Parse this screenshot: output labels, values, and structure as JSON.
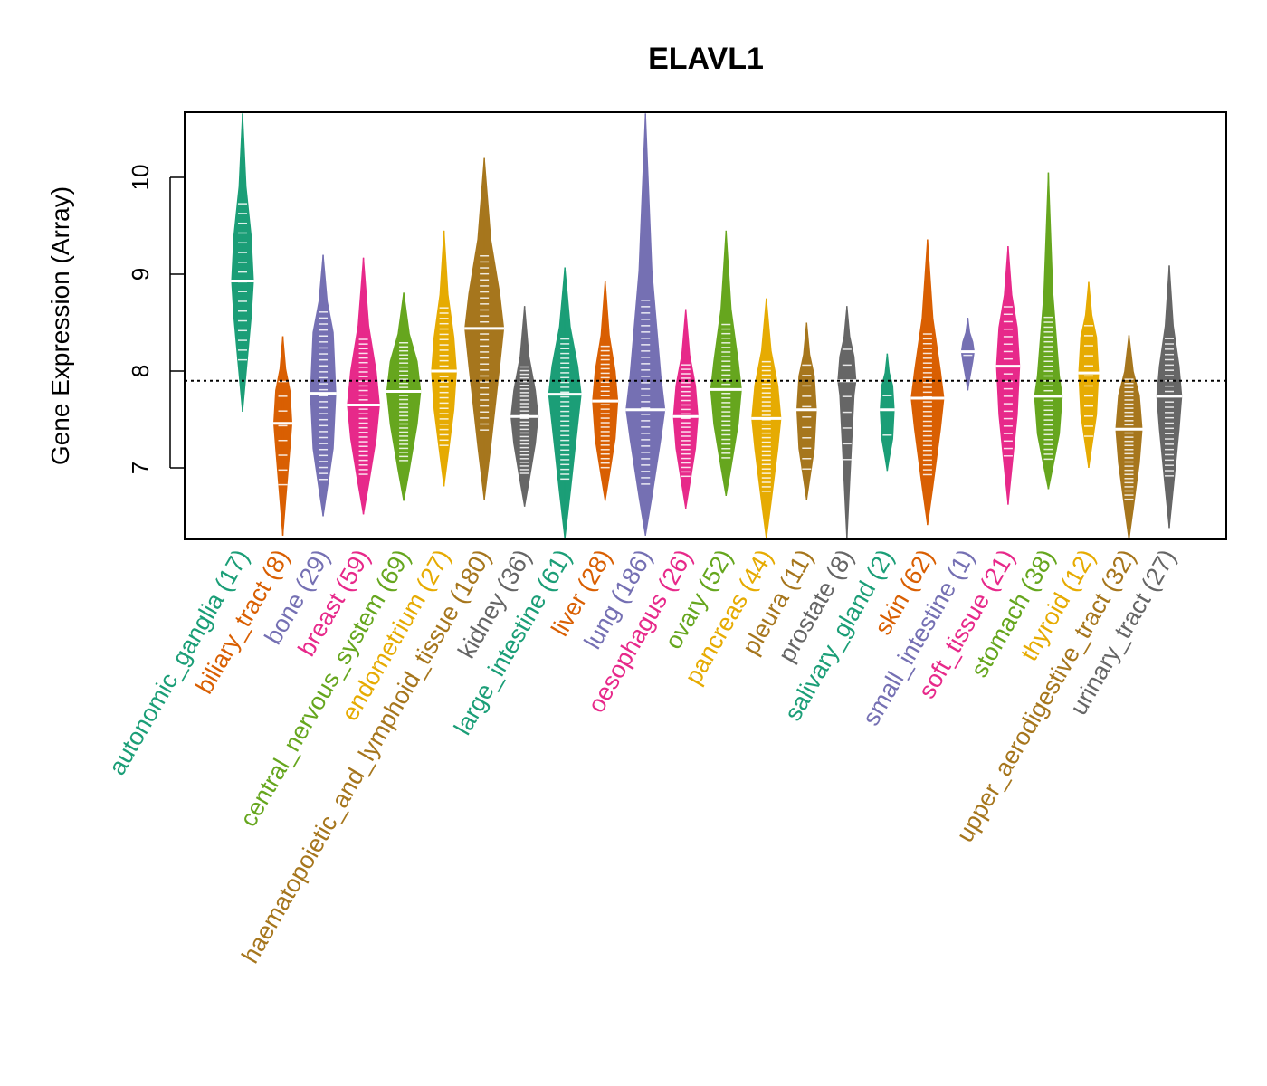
{
  "chart_data": {
    "type": "violin",
    "title": "ELAVL1",
    "xlabel": "",
    "ylabel": "Gene Expression (Array)",
    "ylim": [
      6.25,
      10.68
    ],
    "yticks": [
      7,
      8,
      9,
      10
    ],
    "reference_line": {
      "value": 7.9,
      "style": "dotted"
    },
    "grid": false,
    "legend": "none",
    "groups": [
      {
        "name": "autonomic_ganglia",
        "n": 17,
        "label": "autonomic_ganglia (17)",
        "color": "#1B9E77",
        "min": 7.58,
        "q1": 8.55,
        "median": 8.93,
        "q3": 9.4,
        "max": 10.66
      },
      {
        "name": "biliary_tract",
        "n": 8,
        "label": "biliary_tract (8)",
        "color": "#D95F02",
        "min": 6.3,
        "q1": 7.2,
        "median": 7.46,
        "q3": 7.8,
        "max": 8.36
      },
      {
        "name": "bone",
        "n": 29,
        "label": "bone (29)",
        "color": "#7570B3",
        "min": 6.5,
        "q1": 7.2,
        "median": 7.77,
        "q3": 8.4,
        "max": 9.2
      },
      {
        "name": "breast",
        "n": 59,
        "label": "breast (59)",
        "color": "#E7298A",
        "min": 6.52,
        "q1": 7.3,
        "median": 7.65,
        "q3": 8.0,
        "max": 9.17
      },
      {
        "name": "central_nervous_system",
        "n": 69,
        "label": "central_nervous_system (69)",
        "color": "#66A61E",
        "min": 6.66,
        "q1": 7.45,
        "median": 7.79,
        "q3": 8.1,
        "max": 8.81
      },
      {
        "name": "endometrium",
        "n": 27,
        "label": "endometrium (27)",
        "color": "#E6AB02",
        "min": 6.81,
        "q1": 7.6,
        "median": 8.0,
        "q3": 8.35,
        "max": 9.45
      },
      {
        "name": "haematopoietic_and_lymphoid_tissue",
        "n": 180,
        "label": "haematopoietic_and_lymphoid_tissue (180)",
        "color": "#A6761D",
        "min": 6.67,
        "q1": 8.05,
        "median": 8.44,
        "q3": 8.8,
        "max": 10.2
      },
      {
        "name": "kidney",
        "n": 36,
        "label": "kidney (36)",
        "color": "#666666",
        "min": 6.6,
        "q1": 7.25,
        "median": 7.53,
        "q3": 7.8,
        "max": 8.67
      },
      {
        "name": "large_intestine",
        "n": 61,
        "label": "large_intestine (61)",
        "color": "#1B9E77",
        "min": 6.27,
        "q1": 7.45,
        "median": 7.76,
        "q3": 8.05,
        "max": 9.07
      },
      {
        "name": "liver",
        "n": 28,
        "label": "liver (28)",
        "color": "#D95F02",
        "min": 6.66,
        "q1": 7.3,
        "median": 7.69,
        "q3": 8.0,
        "max": 8.93
      },
      {
        "name": "lung",
        "n": 186,
        "label": "lung (186)",
        "color": "#7570B3",
        "min": 6.3,
        "q1": 7.3,
        "median": 7.6,
        "q3": 7.95,
        "max": 10.66
      },
      {
        "name": "oesophagus",
        "n": 26,
        "label": "oesophagus (26)",
        "color": "#E7298A",
        "min": 6.58,
        "q1": 7.2,
        "median": 7.53,
        "q3": 7.85,
        "max": 8.64
      },
      {
        "name": "ovary",
        "n": 52,
        "label": "ovary (52)",
        "color": "#66A61E",
        "min": 6.71,
        "q1": 7.45,
        "median": 7.81,
        "q3": 8.1,
        "max": 9.45
      },
      {
        "name": "pancreas",
        "n": 44,
        "label": "pancreas (44)",
        "color": "#E6AB02",
        "min": 6.27,
        "q1": 7.2,
        "median": 7.51,
        "q3": 7.85,
        "max": 8.75
      },
      {
        "name": "pleura",
        "n": 11,
        "label": "pleura (11)",
        "color": "#A6761D",
        "min": 6.67,
        "q1": 7.2,
        "median": 7.6,
        "q3": 7.95,
        "max": 8.5
      },
      {
        "name": "prostate",
        "n": 8,
        "label": "prostate (8)",
        "color": "#666666",
        "min": 6.26,
        "q1": 7.75,
        "median": 7.9,
        "q3": 8.15,
        "max": 8.67
      },
      {
        "name": "salivary_gland",
        "n": 2,
        "label": "salivary_gland (2)",
        "color": "#1B9E77",
        "min": 6.97,
        "q1": 7.3,
        "median": 7.6,
        "q3": 7.85,
        "max": 8.18
      },
      {
        "name": "skin",
        "n": 62,
        "label": "skin (62)",
        "color": "#D95F02",
        "min": 6.41,
        "q1": 7.4,
        "median": 7.72,
        "q3": 8.0,
        "max": 9.36
      },
      {
        "name": "small_intestine",
        "n": 1,
        "label": "small_intestine (1)",
        "color": "#7570B3",
        "min": 7.8,
        "q1": 8.1,
        "median": 8.2,
        "q3": 8.3,
        "max": 8.55
      },
      {
        "name": "soft_tissue",
        "n": 21,
        "label": "soft_tissue (21)",
        "color": "#E7298A",
        "min": 6.62,
        "q1": 7.55,
        "median": 8.05,
        "q3": 8.45,
        "max": 9.29
      },
      {
        "name": "stomach",
        "n": 38,
        "label": "stomach (38)",
        "color": "#66A61E",
        "min": 6.78,
        "q1": 7.35,
        "median": 7.74,
        "q3": 7.95,
        "max": 10.05
      },
      {
        "name": "thyroid",
        "n": 12,
        "label": "thyroid (12)",
        "color": "#E6AB02",
        "min": 7.0,
        "q1": 7.55,
        "median": 7.98,
        "q3": 8.35,
        "max": 8.92
      },
      {
        "name": "upper_aerodigestive_tract",
        "n": 32,
        "label": "upper_aerodigestive_tract (32)",
        "color": "#A6761D",
        "min": 6.26,
        "q1": 7.05,
        "median": 7.4,
        "q3": 7.75,
        "max": 8.37
      },
      {
        "name": "urinary_tract",
        "n": 27,
        "label": "urinary_tract (27)",
        "color": "#666666",
        "min": 6.38,
        "q1": 7.4,
        "median": 7.74,
        "q3": 8.05,
        "max": 9.09
      }
    ]
  }
}
